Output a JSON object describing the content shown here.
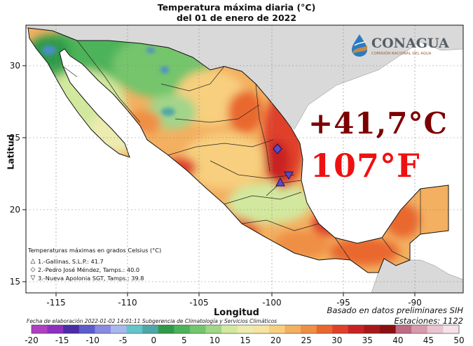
{
  "header": {
    "title_line1": "Temperatura máxima diaria (°C)",
    "title_line2": "del 01 de enero de 2022"
  },
  "axes": {
    "xlabel": "Longitud",
    "ylabel": "Latitud",
    "x_ticks": [
      "-115",
      "-110",
      "-105",
      "-100",
      "-95",
      "-90"
    ],
    "y_ticks": [
      "30",
      "25",
      "20",
      "15"
    ]
  },
  "legend": {
    "title": "Temperaturas máximas en grados Celsius (°C)",
    "stations": [
      {
        "symbol": "△",
        "text": "1.-Gallinas, S.L.P.: 41.7"
      },
      {
        "symbol": "◇",
        "text": "2.-Pedro José Méndez, Tamps.: 40.0"
      },
      {
        "symbol": "▽",
        "text": "3.-Nueva Apolonia SGT, Tamps.: 39.8"
      }
    ]
  },
  "notes": {
    "line1": "Basado en datos preliminares SIH",
    "line2": "Estaciones:  1122",
    "credit": "Fecha de elaboración 2022-01-02 14:01:11 Subgerencia de Climatología y Servicios Climáticos"
  },
  "overlay": {
    "celsius": "+41,7°C",
    "fahrenheit": "107°F"
  },
  "logo": {
    "name": "CONAGUA",
    "subtitle": "COMISIÓN NACIONAL DEL AGUA"
  },
  "colorbar": {
    "labels": [
      "-20",
      "-15",
      "-10",
      "-5",
      "0",
      "5",
      "10",
      "15",
      "20",
      "25",
      "30",
      "35",
      "40",
      "45",
      "50"
    ],
    "colors": [
      "#b03fc4",
      "#8d2fc0",
      "#4b2ba8",
      "#5c5ccc",
      "#8a8ae0",
      "#a9b8ec",
      "#62c6c8",
      "#4fa6a8",
      "#2f9a4a",
      "#4db35a",
      "#74c56c",
      "#a2d58a",
      "#d2e89e",
      "#ecebb0",
      "#f7e3a2",
      "#f7cf7e",
      "#f3b060",
      "#ef8f45",
      "#e9672f",
      "#e0402a",
      "#c92222",
      "#a81818",
      "#8a1010",
      "#c06a84",
      "#d99aad",
      "#e9c4cf",
      "#f6e2e8"
    ]
  },
  "colors": {
    "sea": "#ffffff",
    "land_outside": "#d9d9d9"
  }
}
